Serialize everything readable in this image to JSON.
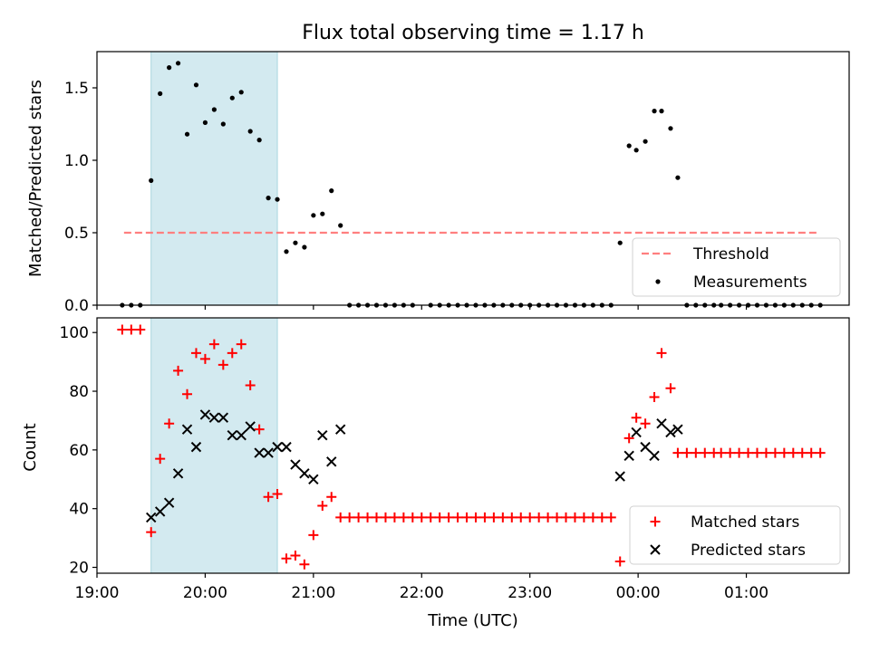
{
  "title": "Flux total observing time = 1.17 h",
  "chart_data": [
    {
      "type": "scatter",
      "ylabel": "Matched/Predicted stars",
      "xlabel": "",
      "xlim": [
        "19:00",
        "01:57"
      ],
      "ylim": [
        0,
        1.75
      ],
      "yticks": [
        0.0,
        0.5,
        1.0,
        1.5
      ],
      "ytick_labels": [
        "0.0",
        "0.5",
        "1.0",
        "1.5"
      ],
      "xticks": [
        "19:00",
        "20:00",
        "21:00",
        "22:00",
        "23:00",
        "00:00",
        "01:00"
      ],
      "shaded_span": [
        "19:30",
        "20:40"
      ],
      "threshold": {
        "name": "Threshold",
        "y": 0.5,
        "x": [
          "19:15",
          "01:40"
        ],
        "color": "#ff7f7f"
      },
      "series": [
        {
          "name": "Measurements",
          "color": "#000000",
          "marker": "dot",
          "points": [
            [
              "19:14",
              0
            ],
            [
              "19:19",
              0
            ],
            [
              "19:24",
              0
            ],
            [
              "19:30",
              0.86
            ],
            [
              "19:35",
              1.46
            ],
            [
              "19:40",
              1.64
            ],
            [
              "19:45",
              1.67
            ],
            [
              "19:50",
              1.18
            ],
            [
              "19:55",
              1.52
            ],
            [
              "20:00",
              1.26
            ],
            [
              "20:05",
              1.35
            ],
            [
              "20:10",
              1.25
            ],
            [
              "20:15",
              1.43
            ],
            [
              "20:20",
              1.47
            ],
            [
              "20:25",
              1.2
            ],
            [
              "20:30",
              1.14
            ],
            [
              "20:35",
              0.74
            ],
            [
              "20:40",
              0.73
            ],
            [
              "20:45",
              0.37
            ],
            [
              "20:50",
              0.43
            ],
            [
              "20:55",
              0.4
            ],
            [
              "21:00",
              0.62
            ],
            [
              "21:05",
              0.63
            ],
            [
              "21:10",
              0.79
            ],
            [
              "21:15",
              0.55
            ],
            [
              "21:20",
              0
            ],
            [
              "21:25",
              0
            ],
            [
              "21:30",
              0
            ],
            [
              "21:35",
              0
            ],
            [
              "21:40",
              0
            ],
            [
              "21:45",
              0
            ],
            [
              "21:50",
              0
            ],
            [
              "21:55",
              0
            ],
            [
              "22:05",
              0
            ],
            [
              "22:10",
              0
            ],
            [
              "22:15",
              0
            ],
            [
              "22:20",
              0
            ],
            [
              "22:25",
              0
            ],
            [
              "22:30",
              0
            ],
            [
              "22:35",
              0
            ],
            [
              "22:40",
              0
            ],
            [
              "22:45",
              0
            ],
            [
              "22:50",
              0
            ],
            [
              "22:55",
              0
            ],
            [
              "23:00",
              0
            ],
            [
              "23:05",
              0
            ],
            [
              "23:10",
              0
            ],
            [
              "23:15",
              0
            ],
            [
              "23:20",
              0
            ],
            [
              "23:25",
              0
            ],
            [
              "23:30",
              0
            ],
            [
              "23:35",
              0
            ],
            [
              "23:40",
              0
            ],
            [
              "23:45",
              0
            ],
            [
              "23:50",
              0.43
            ],
            [
              "23:55",
              1.1
            ],
            [
              "23:59",
              1.07
            ],
            [
              "00:04",
              1.13
            ],
            [
              "00:09",
              1.34
            ],
            [
              "00:13",
              1.34
            ],
            [
              "00:18",
              1.22
            ],
            [
              "00:22",
              0.88
            ],
            [
              "00:27",
              0
            ],
            [
              "00:32",
              0
            ],
            [
              "00:37",
              0
            ],
            [
              "00:42",
              0
            ],
            [
              "00:46",
              0
            ],
            [
              "00:51",
              0
            ],
            [
              "00:56",
              0
            ],
            [
              "01:01",
              0
            ],
            [
              "01:06",
              0
            ],
            [
              "01:11",
              0
            ],
            [
              "01:16",
              0
            ],
            [
              "01:21",
              0
            ],
            [
              "01:26",
              0
            ],
            [
              "01:31",
              0
            ],
            [
              "01:36",
              0
            ],
            [
              "01:41",
              0
            ]
          ]
        }
      ]
    },
    {
      "type": "scatter",
      "ylabel": "Count",
      "xlabel": "Time (UTC)",
      "xlim": [
        "19:00",
        "01:57"
      ],
      "ylim": [
        18,
        105
      ],
      "yticks": [
        20,
        40,
        60,
        80,
        100
      ],
      "ytick_labels": [
        "20",
        "40",
        "60",
        "80",
        "100"
      ],
      "xticks": [
        "19:00",
        "20:00",
        "21:00",
        "22:00",
        "23:00",
        "00:00",
        "01:00"
      ],
      "shaded_span": [
        "19:30",
        "20:40"
      ],
      "series": [
        {
          "name": "Matched stars",
          "color": "#ff0000",
          "marker": "plus",
          "points": [
            [
              "19:14",
              101
            ],
            [
              "19:19",
              101
            ],
            [
              "19:24",
              101
            ],
            [
              "19:30",
              32
            ],
            [
              "19:35",
              57
            ],
            [
              "19:40",
              69
            ],
            [
              "19:45",
              87
            ],
            [
              "19:50",
              79
            ],
            [
              "19:55",
              93
            ],
            [
              "20:00",
              91
            ],
            [
              "20:05",
              96
            ],
            [
              "20:10",
              89
            ],
            [
              "20:15",
              93
            ],
            [
              "20:20",
              96
            ],
            [
              "20:25",
              82
            ],
            [
              "20:30",
              67
            ],
            [
              "20:35",
              44
            ],
            [
              "20:40",
              45
            ],
            [
              "20:45",
              23
            ],
            [
              "20:50",
              24
            ],
            [
              "20:55",
              21
            ],
            [
              "21:00",
              31
            ],
            [
              "21:05",
              41
            ],
            [
              "21:10",
              44
            ],
            [
              "21:15",
              37
            ],
            [
              "21:20",
              37
            ],
            [
              "21:25",
              37
            ],
            [
              "21:30",
              37
            ],
            [
              "21:35",
              37
            ],
            [
              "21:40",
              37
            ],
            [
              "21:45",
              37
            ],
            [
              "21:50",
              37
            ],
            [
              "21:55",
              37
            ],
            [
              "22:00",
              37
            ],
            [
              "22:05",
              37
            ],
            [
              "22:10",
              37
            ],
            [
              "22:15",
              37
            ],
            [
              "22:20",
              37
            ],
            [
              "22:25",
              37
            ],
            [
              "22:30",
              37
            ],
            [
              "22:35",
              37
            ],
            [
              "22:40",
              37
            ],
            [
              "22:45",
              37
            ],
            [
              "22:50",
              37
            ],
            [
              "22:55",
              37
            ],
            [
              "23:00",
              37
            ],
            [
              "23:05",
              37
            ],
            [
              "23:10",
              37
            ],
            [
              "23:15",
              37
            ],
            [
              "23:20",
              37
            ],
            [
              "23:25",
              37
            ],
            [
              "23:30",
              37
            ],
            [
              "23:35",
              37
            ],
            [
              "23:40",
              37
            ],
            [
              "23:45",
              37
            ],
            [
              "23:50",
              22
            ],
            [
              "23:55",
              64
            ],
            [
              "23:59",
              71
            ],
            [
              "00:04",
              69
            ],
            [
              "00:09",
              78
            ],
            [
              "00:13",
              93
            ],
            [
              "00:18",
              81
            ],
            [
              "00:22",
              59
            ],
            [
              "00:27",
              59
            ],
            [
              "00:32",
              59
            ],
            [
              "00:37",
              59
            ],
            [
              "00:42",
              59
            ],
            [
              "00:46",
              59
            ],
            [
              "00:51",
              59
            ],
            [
              "00:56",
              59
            ],
            [
              "01:01",
              59
            ],
            [
              "01:06",
              59
            ],
            [
              "01:11",
              59
            ],
            [
              "01:16",
              59
            ],
            [
              "01:21",
              59
            ],
            [
              "01:26",
              59
            ],
            [
              "01:31",
              59
            ],
            [
              "01:36",
              59
            ],
            [
              "01:41",
              59
            ]
          ]
        },
        {
          "name": "Predicted stars",
          "color": "#000000",
          "marker": "x",
          "points": [
            [
              "19:30",
              37
            ],
            [
              "19:35",
              39
            ],
            [
              "19:40",
              42
            ],
            [
              "19:45",
              52
            ],
            [
              "19:50",
              67
            ],
            [
              "19:55",
              61
            ],
            [
              "20:00",
              72
            ],
            [
              "20:05",
              71
            ],
            [
              "20:10",
              71
            ],
            [
              "20:15",
              65
            ],
            [
              "20:20",
              65
            ],
            [
              "20:25",
              68
            ],
            [
              "20:30",
              59
            ],
            [
              "20:35",
              59
            ],
            [
              "20:40",
              61
            ],
            [
              "20:45",
              61
            ],
            [
              "20:50",
              55
            ],
            [
              "20:55",
              52
            ],
            [
              "21:00",
              50
            ],
            [
              "21:05",
              65
            ],
            [
              "21:10",
              56
            ],
            [
              "21:15",
              67
            ],
            [
              "23:50",
              51
            ],
            [
              "23:55",
              58
            ],
            [
              "23:59",
              66
            ],
            [
              "00:04",
              61
            ],
            [
              "00:09",
              58
            ],
            [
              "00:13",
              69
            ],
            [
              "00:18",
              66
            ],
            [
              "00:22",
              67
            ]
          ]
        }
      ]
    }
  ]
}
